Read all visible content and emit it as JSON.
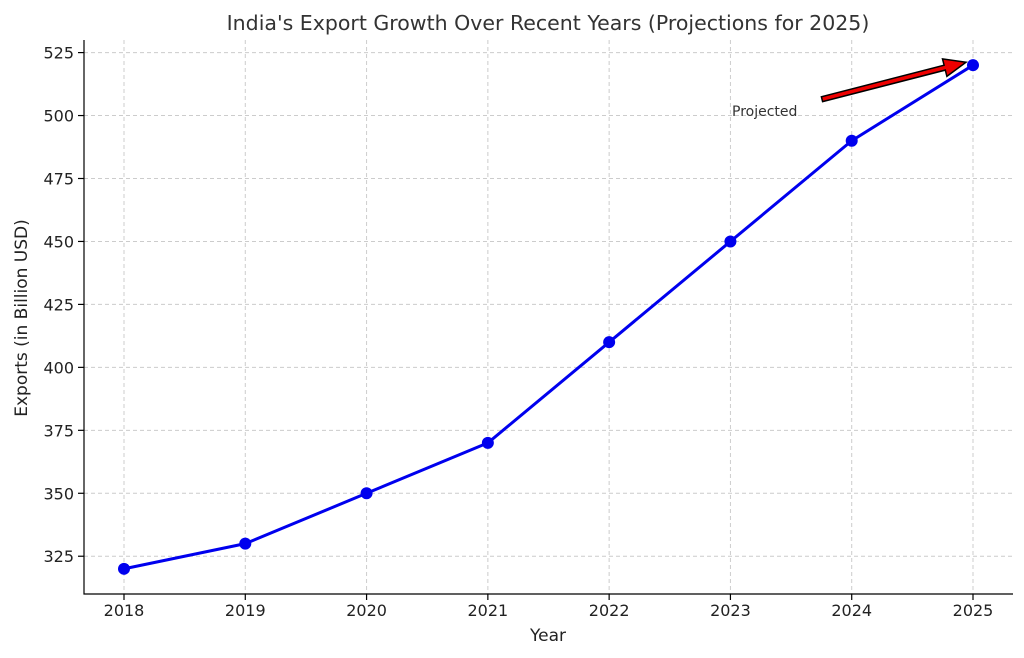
{
  "chart_data": {
    "type": "line",
    "title": "India's Export Growth Over Recent Years (Projections for 2025)",
    "xlabel": "Year",
    "ylabel": "Exports (in Billion USD)",
    "x": [
      "2018",
      "2019",
      "2020",
      "2021",
      "2022",
      "2023",
      "2024",
      "2025"
    ],
    "series": [
      {
        "values": [
          320,
          330,
          350,
          370,
          410,
          450,
          490,
          520
        ],
        "color": "#0000ee"
      }
    ],
    "yticks": [
      325,
      350,
      375,
      400,
      425,
      450,
      475,
      500,
      525
    ],
    "ylim": [
      310,
      530
    ],
    "grid": true,
    "annotations": [
      {
        "text": "Projected",
        "target_x": "2025",
        "target_y": 520,
        "arrow_color": "#ee0000"
      }
    ]
  }
}
